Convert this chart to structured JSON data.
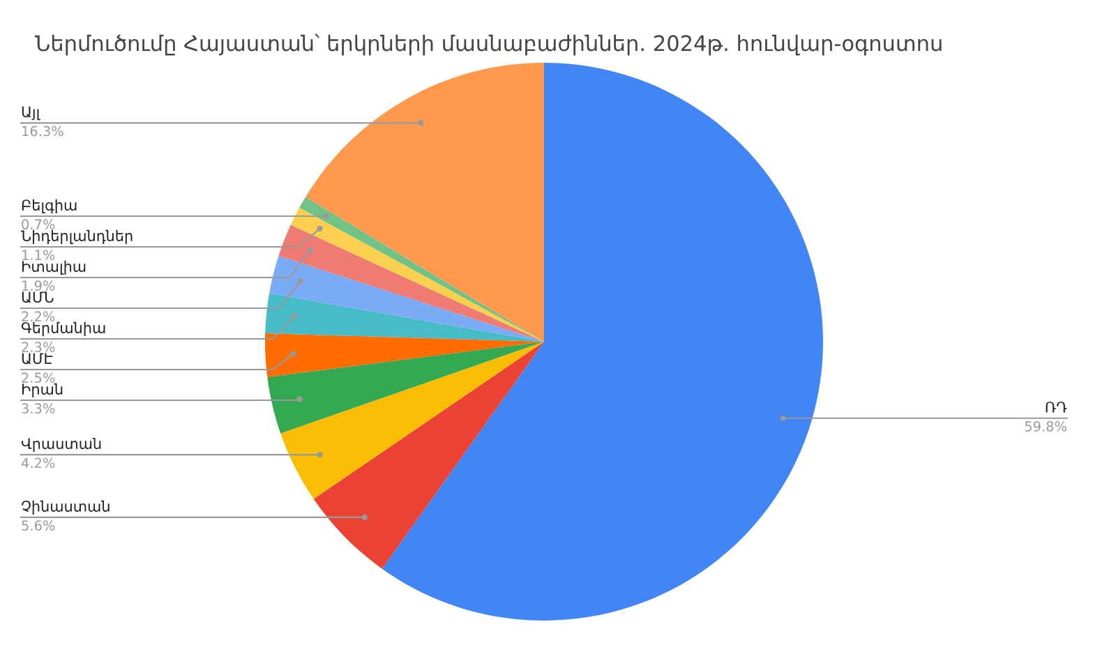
{
  "chart_data": {
    "type": "pie",
    "title": "Ներմուծումը Հայաստան՝ երկրների մասնաբաժիններ. 2024թ. հունվար-օգոստոս",
    "categories": [
      "ՌԴ",
      "Չինաստան",
      "Վրաստան",
      "Իրան",
      "ԱՄԷ",
      "Գերմանիա",
      "ԱՄՆ",
      "Իտալիա",
      "Նիդերլանդներ",
      "Բելգիա",
      "Այլ"
    ],
    "values": [
      59.8,
      5.6,
      4.2,
      3.3,
      2.5,
      2.3,
      2.2,
      1.9,
      1.1,
      0.7,
      16.3
    ],
    "value_labels": [
      "59.8%",
      "5.6%",
      "4.2%",
      "3.3%",
      "2.5%",
      "2.3%",
      "2.2%",
      "1.9%",
      "1.1%",
      "0.7%",
      "16.3%"
    ],
    "colors": [
      "#4285f4",
      "#ea4335",
      "#fbbc04",
      "#34a853",
      "#ff6d01",
      "#46bdc6",
      "#7baaf7",
      "#f07b72",
      "#fcd04f",
      "#71c287",
      "#ff994d"
    ]
  }
}
